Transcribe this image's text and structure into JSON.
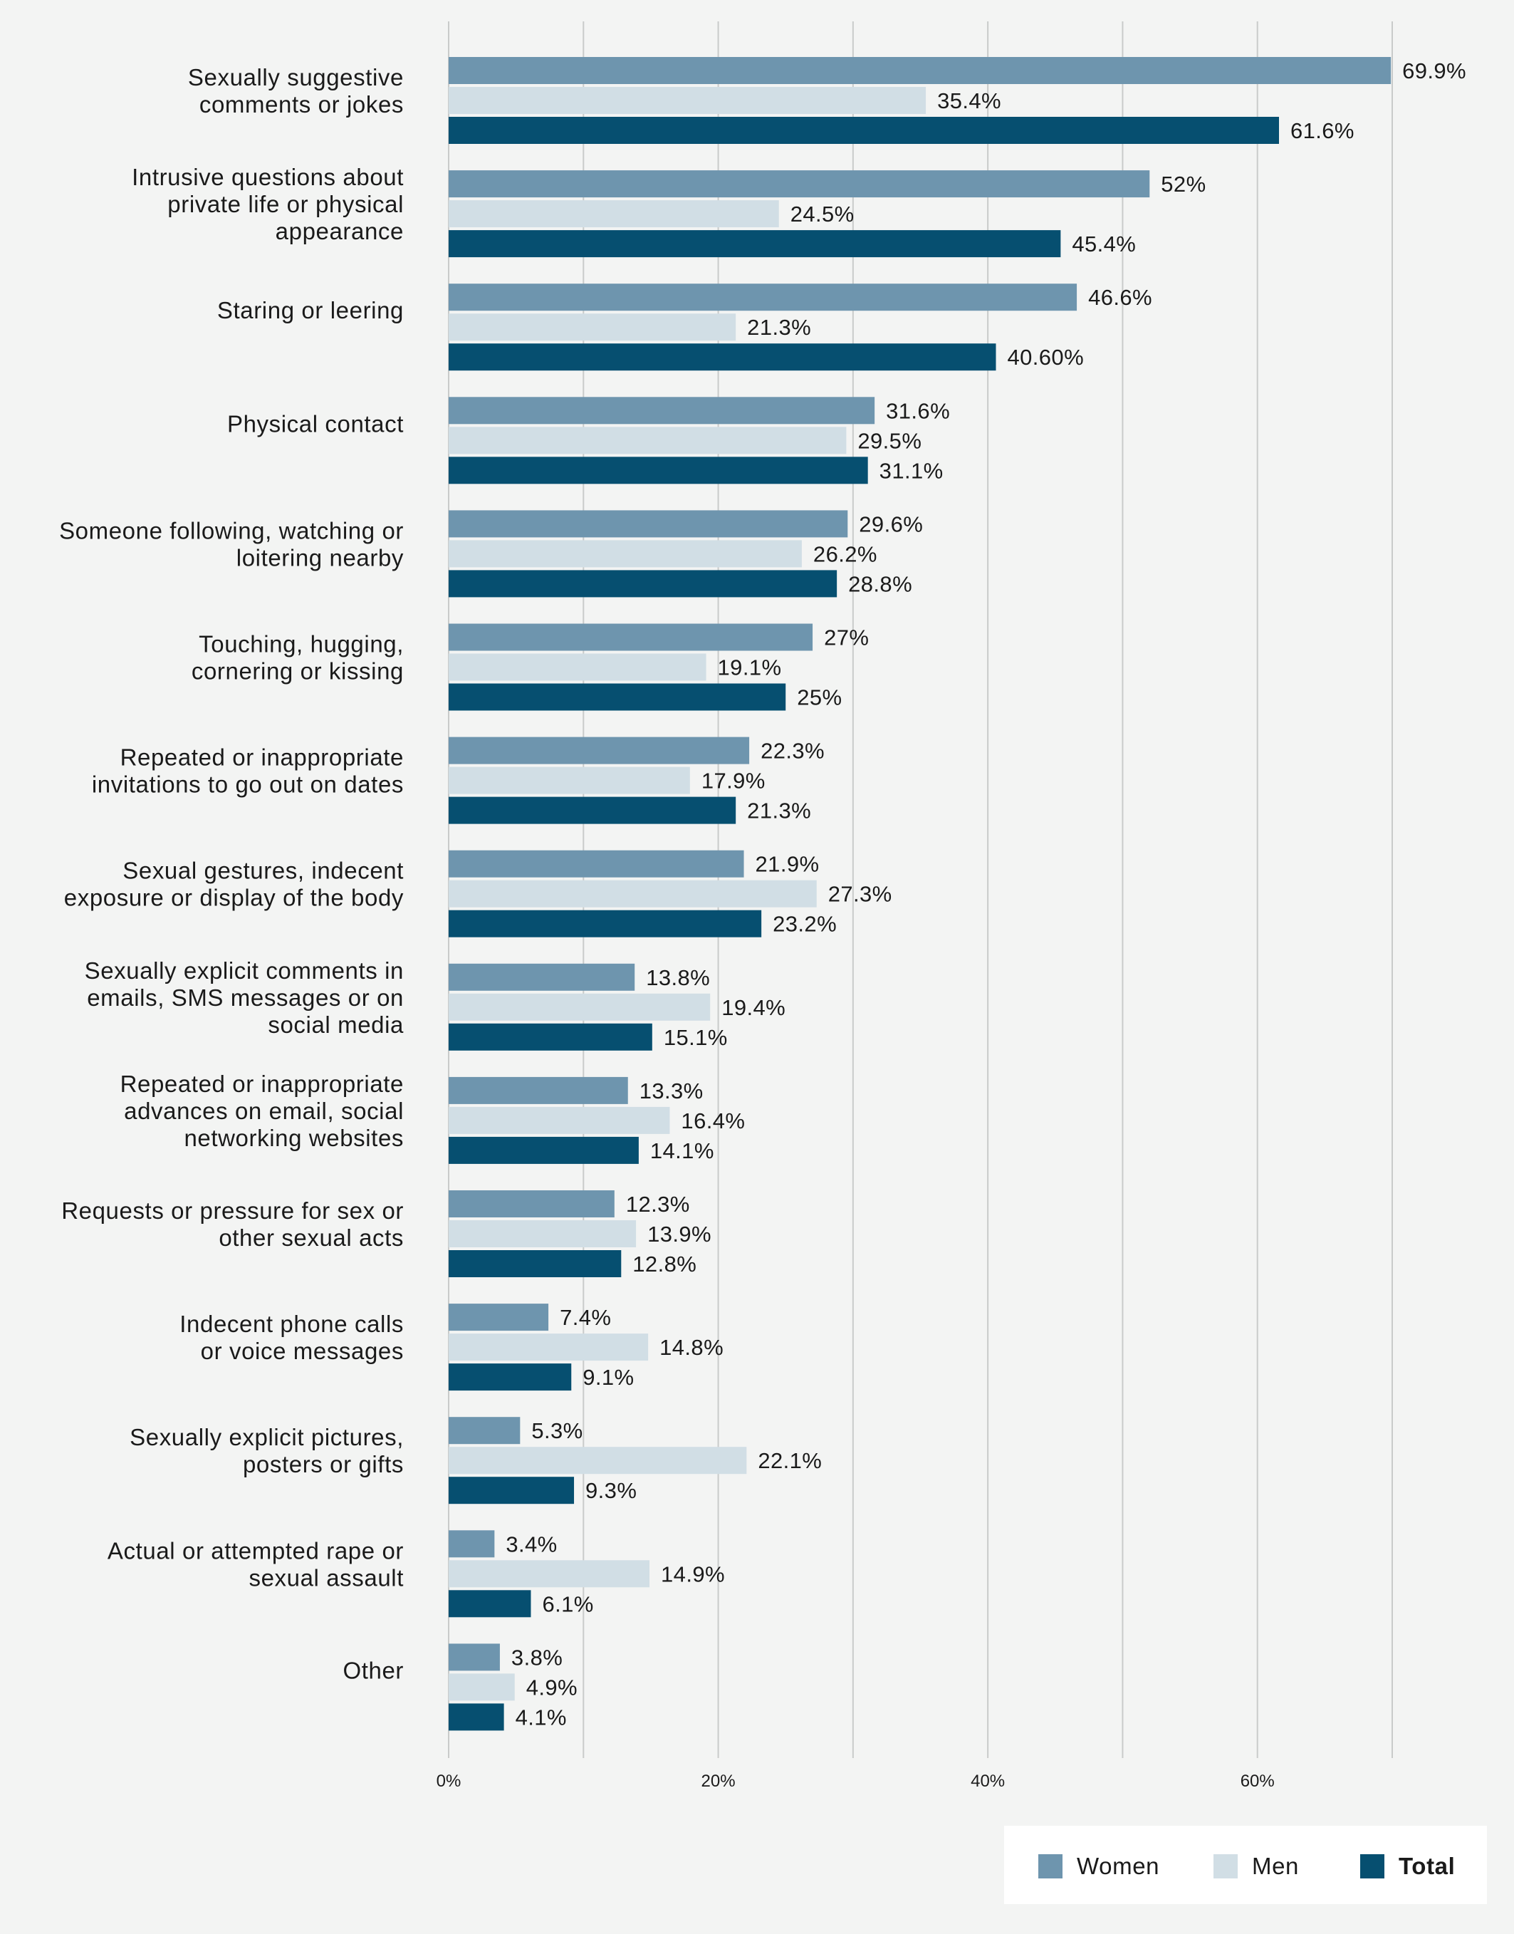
{
  "chart_data": {
    "type": "bar",
    "orientation": "horizontal",
    "title": "",
    "xlabel": "",
    "ylabel": "",
    "xlim": [
      0,
      70
    ],
    "ticks": [
      {
        "value": 0,
        "label": "0%"
      },
      {
        "value": 20,
        "label": "20%"
      },
      {
        "value": 40,
        "label": "40%"
      },
      {
        "value": 60,
        "label": "60%"
      }
    ],
    "gridlines": [
      0,
      10,
      20,
      30,
      40,
      50,
      60,
      70
    ],
    "legend_position": "bottom-right",
    "categories": [
      [
        "Sexually suggestive",
        "comments or jokes"
      ],
      [
        "Intrusive questions about",
        "private life or physical",
        "appearance"
      ],
      [
        "Staring or leering"
      ],
      [
        "Physical contact"
      ],
      [
        "Someone following, watching or",
        "loitering nearby"
      ],
      [
        "Touching, hugging,",
        "cornering or kissing"
      ],
      [
        "Repeated or inappropriate",
        "invitations to go out on dates"
      ],
      [
        "Sexual gestures, indecent",
        "exposure or display of the body"
      ],
      [
        "Sexually explicit comments in",
        "emails, SMS messages or on",
        "social media"
      ],
      [
        "Repeated or inappropriate",
        "advances on email, social",
        "networking websites"
      ],
      [
        "Requests or pressure for sex or",
        "other sexual acts"
      ],
      [
        "Indecent phone calls",
        "or voice messages"
      ],
      [
        "Sexually explicit pictures,",
        "posters or gifts"
      ],
      [
        "Actual or attempted rape or",
        "sexual assault"
      ],
      [
        "Other"
      ]
    ],
    "series": [
      {
        "name": "Women",
        "color": "#6e95ae",
        "values": [
          69.9,
          52,
          46.6,
          31.6,
          29.6,
          27,
          22.3,
          21.9,
          13.8,
          13.3,
          12.3,
          7.4,
          5.3,
          3.4,
          3.8
        ],
        "labels": [
          "69.9%",
          "52%",
          "46.6%",
          "31.6%",
          "29.6%",
          "27%",
          "22.3%",
          "21.9%",
          "13.8%",
          "13.3%",
          "12.3%",
          "7.4%",
          "5.3%",
          "3.4%",
          "3.8%"
        ]
      },
      {
        "name": "Men",
        "color": "#d1dee5",
        "values": [
          35.4,
          24.5,
          21.3,
          29.5,
          26.2,
          19.1,
          17.9,
          27.3,
          19.4,
          16.4,
          13.9,
          14.8,
          22.1,
          14.9,
          4.9
        ],
        "labels": [
          "35.4%",
          "24.5%",
          "21.3%",
          "29.5%",
          "26.2%",
          "19.1%",
          "17.9%",
          "27.3%",
          "19.4%",
          "16.4%",
          "13.9%",
          "14.8%",
          "22.1%",
          "14.9%",
          "4.9%"
        ]
      },
      {
        "name": "Total",
        "color": "#064f70",
        "values": [
          61.6,
          45.4,
          40.6,
          31.1,
          28.8,
          25,
          21.3,
          23.2,
          15.1,
          14.1,
          12.8,
          9.1,
          9.3,
          6.1,
          4.1
        ],
        "labels": [
          "61.6%",
          "45.4%",
          "40.60%",
          "31.1%",
          "28.8%",
          "25%",
          "21.3%",
          "23.2%",
          "15.1%",
          "14.1%",
          "12.8%",
          "9.1%",
          "9.3%",
          "6.1%",
          "4.1%"
        ]
      }
    ]
  }
}
